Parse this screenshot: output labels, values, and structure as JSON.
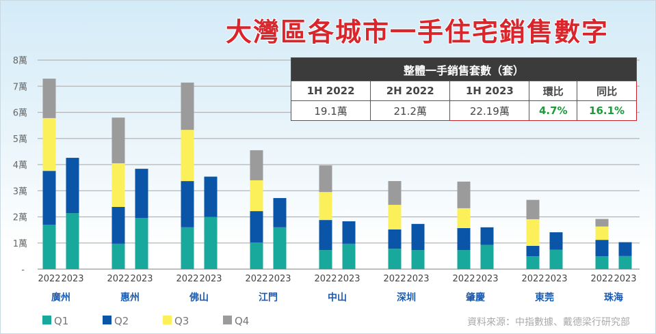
{
  "title": "大灣區各城市一手住宅銷售數字",
  "summary_table": {
    "header": "整體一手銷售套數（套）",
    "columns": [
      "1H 2022",
      "2H 2022",
      "1H 2023",
      "環比",
      "同比"
    ],
    "values": [
      "19.1萬",
      "21.2萬",
      "22.19萬",
      "4.7%",
      "16.1%"
    ]
  },
  "source": "資料來源：中指數據、戴德梁行研究部",
  "chart_data": {
    "type": "bar",
    "stacked": true,
    "title": "大灣區各城市一手住宅銷售數字",
    "ylabel": "",
    "xlabel": "",
    "ylim": [
      0,
      8
    ],
    "y_ticks": [
      "-",
      "1萬",
      "2萬",
      "3萬",
      "4萬",
      "5萬",
      "6萬",
      "7萬",
      "8萬"
    ],
    "unit": "萬",
    "grid": true,
    "legend_position": "bottom-left",
    "series_names": [
      "Q1",
      "Q2",
      "Q3",
      "Q4"
    ],
    "colors": {
      "Q1": "#19a89c",
      "Q2": "#0b55a8",
      "Q3": "#fcf05a",
      "Q4": "#9b9b9b"
    },
    "groups": [
      {
        "city": "廣州",
        "bars": [
          {
            "year": "2022",
            "values": [
              1.7,
              2.06,
              2.02,
              1.51
            ]
          },
          {
            "year": "2023",
            "values": [
              2.14,
              2.12
            ]
          }
        ]
      },
      {
        "city": "惠州",
        "bars": [
          {
            "year": "2022",
            "values": [
              0.97,
              1.41,
              1.67,
              1.75
            ]
          },
          {
            "year": "2023",
            "values": [
              1.96,
              1.88
            ]
          }
        ]
      },
      {
        "city": "佛山",
        "bars": [
          {
            "year": "2022",
            "values": [
              1.6,
              1.77,
              1.96,
              1.81
            ]
          },
          {
            "year": "2023",
            "values": [
              2.0,
              1.54
            ]
          }
        ]
      },
      {
        "city": "江門",
        "bars": [
          {
            "year": "2022",
            "values": [
              1.02,
              1.2,
              1.18,
              1.15
            ]
          },
          {
            "year": "2023",
            "values": [
              1.6,
              1.12
            ]
          }
        ]
      },
      {
        "city": "中山",
        "bars": [
          {
            "year": "2022",
            "values": [
              0.73,
              1.15,
              1.07,
              1.02
            ]
          },
          {
            "year": "2023",
            "values": [
              0.97,
              0.86
            ]
          }
        ]
      },
      {
        "city": "深圳",
        "bars": [
          {
            "year": "2022",
            "values": [
              0.78,
              0.74,
              0.94,
              0.91
            ]
          },
          {
            "year": "2023",
            "values": [
              0.73,
              1.0
            ]
          }
        ]
      },
      {
        "city": "肇慶",
        "bars": [
          {
            "year": "2022",
            "values": [
              0.73,
              0.84,
              0.76,
              1.02
            ]
          },
          {
            "year": "2023",
            "values": [
              0.93,
              0.67
            ]
          }
        ]
      },
      {
        "city": "東莞",
        "bars": [
          {
            "year": "2022",
            "values": [
              0.49,
              0.4,
              1.02,
              0.74
            ]
          },
          {
            "year": "2023",
            "values": [
              0.74,
              0.67
            ]
          }
        ]
      },
      {
        "city": "珠海",
        "bars": [
          {
            "year": "2022",
            "values": [
              0.49,
              0.63,
              0.51,
              0.29
            ]
          },
          {
            "year": "2023",
            "values": [
              0.5,
              0.53
            ]
          }
        ]
      }
    ]
  }
}
